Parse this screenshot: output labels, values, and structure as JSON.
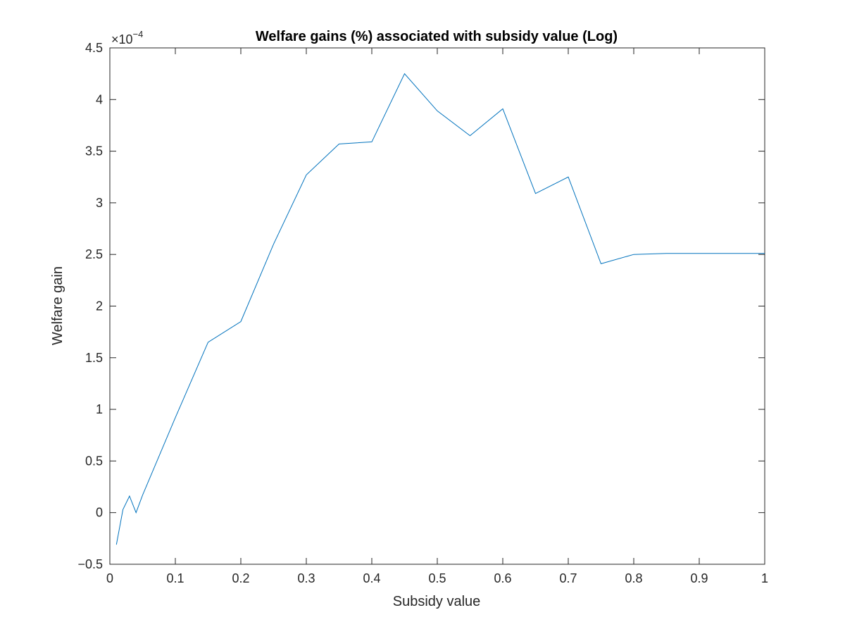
{
  "chart_data": {
    "type": "line",
    "title": "Welfare gains (%) associated with subsidy value (Log)",
    "xlabel": "Subsidy value",
    "ylabel": "Welfare gain",
    "y_multiplier": {
      "base": "×10",
      "exponent": "−4"
    },
    "xlim": [
      0,
      1
    ],
    "ylim": [
      -0.5,
      4.5
    ],
    "x_ticks": [
      0,
      0.1,
      0.2,
      0.3,
      0.4,
      0.5,
      0.6,
      0.7,
      0.8,
      0.9,
      1
    ],
    "x_tick_labels": [
      "0",
      "0.1",
      "0.2",
      "0.3",
      "0.4",
      "0.5",
      "0.6",
      "0.7",
      "0.8",
      "0.9",
      "1"
    ],
    "y_ticks": [
      -0.5,
      0,
      0.5,
      1,
      1.5,
      2,
      2.5,
      3,
      3.5,
      4,
      4.5
    ],
    "y_tick_labels": [
      "−0.5",
      "0",
      "0.5",
      "1",
      "1.5",
      "2",
      "2.5",
      "3",
      "3.5",
      "4",
      "4.5"
    ],
    "grid": false,
    "line_color": "#0072BD",
    "series": [
      {
        "x": [
          0.01,
          0.02,
          0.03,
          0.04,
          0.05,
          0.1,
          0.15,
          0.2,
          0.25,
          0.3,
          0.35,
          0.4,
          0.45,
          0.5,
          0.55,
          0.6,
          0.65,
          0.7,
          0.75,
          0.8,
          0.85,
          0.9,
          0.95,
          1.0
        ],
        "values": [
          -0.31,
          0.03,
          0.16,
          0.0,
          0.17,
          0.92,
          1.65,
          1.85,
          2.6,
          3.27,
          3.57,
          3.59,
          4.25,
          3.89,
          3.65,
          3.91,
          3.09,
          3.25,
          2.41,
          2.5,
          2.51,
          2.51,
          2.51,
          2.51
        ]
      }
    ]
  }
}
